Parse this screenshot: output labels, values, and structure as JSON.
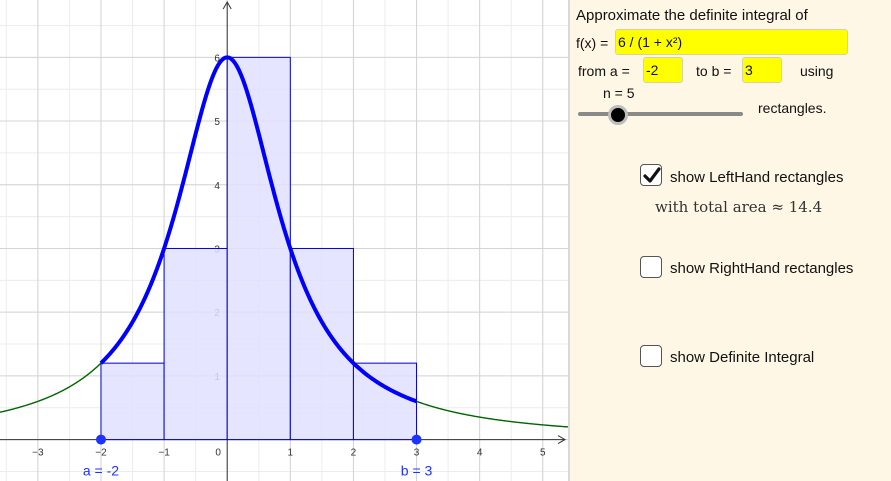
{
  "graph": {
    "x_range": [
      -3.6,
      5.4
    ],
    "y_range": [
      -0.65,
      6.9
    ],
    "x_ticks": [
      "-3",
      "-2",
      "-1",
      "0",
      "1",
      "2",
      "3",
      "4",
      "5"
    ],
    "y_ticks": [
      "1",
      "2",
      "3",
      "4",
      "5",
      "6"
    ],
    "function": "6 / (1 + x²)",
    "a": -2,
    "b": 3,
    "n": 5,
    "rectangle_heights": [
      1.2,
      3,
      6,
      3,
      1.2
    ],
    "point_a_label": "a = -2",
    "point_b_label": "b = 3",
    "colors": {
      "curve_on_interval": "#0000ff",
      "curve_outside": "#006400",
      "rect_fill": "#e0e0ff",
      "rect_stroke": "#0000cc",
      "grid": "#d4d4d4",
      "point": "#1f33ff"
    }
  },
  "panel": {
    "title": "Approximate the definite integral of",
    "fx_label": "f(x) =",
    "fx_value": "6 / (1 + x²)",
    "from_label": "from  a =",
    "a_value": "-2",
    "to_label": "to  b =",
    "b_value": "3",
    "using_label": "using",
    "n_label": "n = 5",
    "n_value": 5,
    "n_min": 1,
    "n_max": 50,
    "rectangles_label": "rectangles.",
    "left_label": "show LeftHand rectangles",
    "left_checked": true,
    "area_text": "with total area  ≈ 14.4",
    "right_label": "show RightHand rectangles",
    "right_checked": false,
    "integral_label": "show Definite Integral",
    "integral_checked": false
  }
}
